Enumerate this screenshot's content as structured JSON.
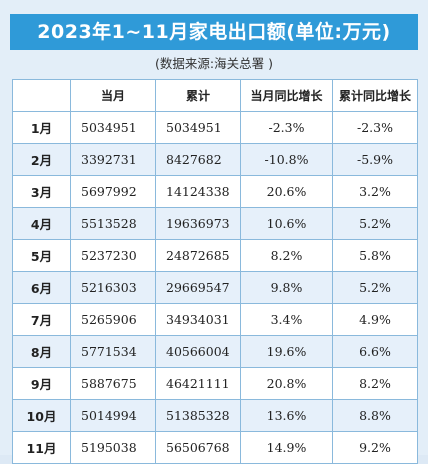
{
  "title": "2023年1~11月家电出口额(单位:万元)",
  "source": "(数据来源:海关总署 )",
  "table": {
    "headers": [
      "",
      "当月",
      "累计",
      "当月同比增长",
      "累计同比增长"
    ],
    "rows": [
      {
        "month": "1月",
        "monthly": "5034951",
        "cumulative": "5034951",
        "monthly_yoy": "-2.3%",
        "cumulative_yoy": "-2.3%"
      },
      {
        "month": "2月",
        "monthly": "3392731",
        "cumulative": "8427682",
        "monthly_yoy": "-10.8%",
        "cumulative_yoy": "-5.9%"
      },
      {
        "month": "3月",
        "monthly": "5697992",
        "cumulative": "14124338",
        "monthly_yoy": "20.6%",
        "cumulative_yoy": "3.2%"
      },
      {
        "month": "4月",
        "monthly": "5513528",
        "cumulative": "19636973",
        "monthly_yoy": "10.6%",
        "cumulative_yoy": "5.2%"
      },
      {
        "month": "5月",
        "monthly": "5237230",
        "cumulative": "24872685",
        "monthly_yoy": "8.2%",
        "cumulative_yoy": "5.8%"
      },
      {
        "month": "6月",
        "monthly": "5216303",
        "cumulative": "29669547",
        "monthly_yoy": "9.8%",
        "cumulative_yoy": "5.2%"
      },
      {
        "month": "7月",
        "monthly": "5265906",
        "cumulative": "34934031",
        "monthly_yoy": "3.4%",
        "cumulative_yoy": "4.9%"
      },
      {
        "month": "8月",
        "monthly": "5771534",
        "cumulative": "40566004",
        "monthly_yoy": "19.6%",
        "cumulative_yoy": "6.6%"
      },
      {
        "month": "9月",
        "monthly": "5887675",
        "cumulative": "46421111",
        "monthly_yoy": "20.8%",
        "cumulative_yoy": "8.2%"
      },
      {
        "month": "10月",
        "monthly": "5014994",
        "cumulative": "51385328",
        "monthly_yoy": "13.6%",
        "cumulative_yoy": "8.8%"
      },
      {
        "month": "11月",
        "monthly": "5195038",
        "cumulative": "56506768",
        "monthly_yoy": "14.9%",
        "cumulative_yoy": "9.2%"
      }
    ]
  },
  "colors": {
    "title_bg": "#2f9ad8",
    "page_bg": "#e3eef8",
    "row_alt_bg": "#e6f0fa",
    "border": "#8ab9dc"
  }
}
